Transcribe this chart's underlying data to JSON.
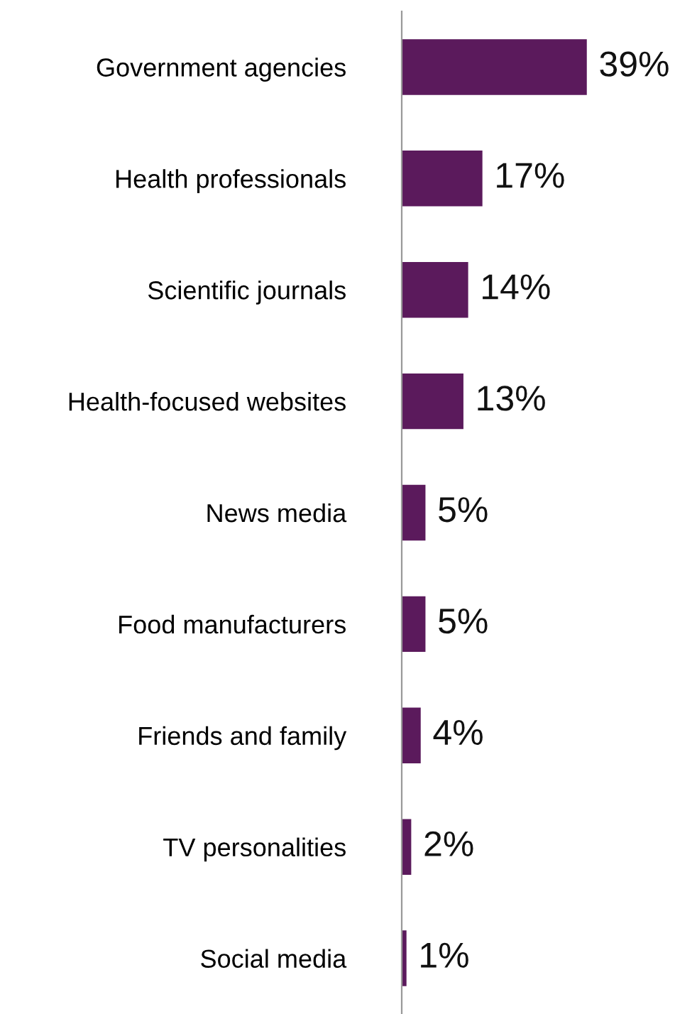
{
  "chart_data": {
    "type": "bar",
    "orientation": "horizontal",
    "categories": [
      "Government agencies",
      "Health professionals",
      "Scientific journals",
      "Health-focused websites",
      "News media",
      "Food manufacturers",
      "Friends and family",
      "TV personalities",
      "Social media"
    ],
    "values": [
      39,
      17,
      14,
      13,
      5,
      5,
      4,
      2,
      1
    ],
    "value_labels": [
      "39%",
      "17%",
      "14%",
      "13%",
      "5%",
      "5%",
      "4%",
      "2%",
      "1%"
    ],
    "color": "#5b1a5c",
    "grid": false,
    "legend": false,
    "tick_labels": "y"
  }
}
